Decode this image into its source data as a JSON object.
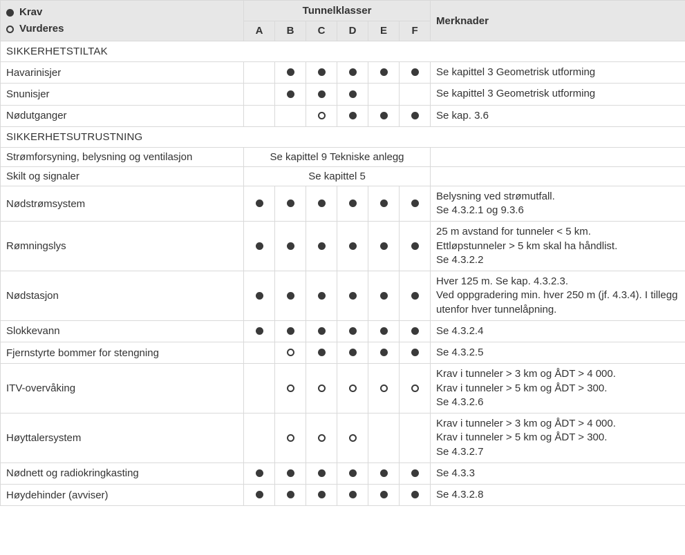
{
  "legend": {
    "krav": "Krav",
    "vurderes": "Vurderes"
  },
  "header": {
    "tunnelklasser": "Tunnelklasser",
    "merknader": "Merknader",
    "classes": [
      "A",
      "B",
      "C",
      "D",
      "E",
      "F"
    ]
  },
  "symbols": {
    "filled": "filled",
    "open": "open",
    "blank": ""
  },
  "sections": [
    {
      "type": "section",
      "label": "SIKKERHETSTILTAK"
    },
    {
      "type": "row",
      "label": "Havarinisjer",
      "cells": [
        "",
        "filled",
        "filled",
        "filled",
        "filled",
        "filled"
      ],
      "note": "Se kapittel 3 Geometrisk utforming"
    },
    {
      "type": "row",
      "label": "Snunisjer",
      "cells": [
        "",
        "filled",
        "filled",
        "filled",
        "",
        ""
      ],
      "note": "Se kapittel 3 Geometrisk utforming"
    },
    {
      "type": "row",
      "label": "Nødutganger",
      "cells": [
        "",
        "",
        "open",
        "filled",
        "filled",
        "filled"
      ],
      "note": "Se kap. 3.6"
    },
    {
      "type": "section",
      "label": "SIKKERHETSUTRUSTNING"
    },
    {
      "type": "span",
      "label": "Strømforsyning, belysning og ventilasjon",
      "span_text": "Se kapittel 9 Tekniske anlegg",
      "note": ""
    },
    {
      "type": "span",
      "label": "Skilt og signaler",
      "span_text": "Se kapittel 5",
      "note": ""
    },
    {
      "type": "row",
      "label": "Nødstrømsystem",
      "cells": [
        "filled",
        "filled",
        "filled",
        "filled",
        "filled",
        "filled"
      ],
      "note": "Belysning ved strømutfall.\nSe 4.3.2.1 og 9.3.6"
    },
    {
      "type": "row",
      "label": "Rømningslys",
      "cells": [
        "filled",
        "filled",
        "filled",
        "filled",
        "filled",
        "filled"
      ],
      "note": "25 m avstand for tunneler < 5 km.\nEttløpstunneler > 5 km skal ha håndlist.\nSe 4.3.2.2"
    },
    {
      "type": "row",
      "label": "Nødstasjon",
      "cells": [
        "filled",
        "filled",
        "filled",
        "filled",
        "filled",
        "filled"
      ],
      "note": "Hver 125 m. Se kap. 4.3.2.3.\nVed oppgradering min. hver 250 m (jf. 4.3.4). I tillegg utenfor hver tunnelåpning."
    },
    {
      "type": "row",
      "label": "Slokkevann",
      "cells": [
        "filled",
        "filled",
        "filled",
        "filled",
        "filled",
        "filled"
      ],
      "note": "Se 4.3.2.4"
    },
    {
      "type": "row",
      "label": "Fjernstyrte bommer for stengning",
      "cells": [
        "",
        "open",
        "filled",
        "filled",
        "filled",
        "filled"
      ],
      "note": "Se 4.3.2.5"
    },
    {
      "type": "row",
      "label": "ITV-overvåking",
      "cells": [
        "",
        "open",
        "open",
        "open",
        "open",
        "open"
      ],
      "note": "Krav i tunneler > 3 km og ÅDT > 4 000.\nKrav i tunneler > 5 km og ÅDT > 300.\nSe 4.3.2.6"
    },
    {
      "type": "row",
      "label": "Høyttalersystem",
      "cells": [
        "",
        "open",
        "open",
        "open",
        "",
        ""
      ],
      "note": "Krav i tunneler > 3 km og ÅDT > 4 000.\nKrav i tunneler > 5 km og ÅDT > 300.\nSe 4.3.2.7"
    },
    {
      "type": "row",
      "label": "Nødnett og radiokringkasting",
      "cells": [
        "filled",
        "filled",
        "filled",
        "filled",
        "filled",
        "filled"
      ],
      "note": "Se 4.3.3"
    },
    {
      "type": "row",
      "label": "Høydehinder (avviser)",
      "cells": [
        "filled",
        "filled",
        "filled",
        "filled",
        "filled",
        "filled"
      ],
      "note": "Se 4.3.2.8"
    }
  ]
}
